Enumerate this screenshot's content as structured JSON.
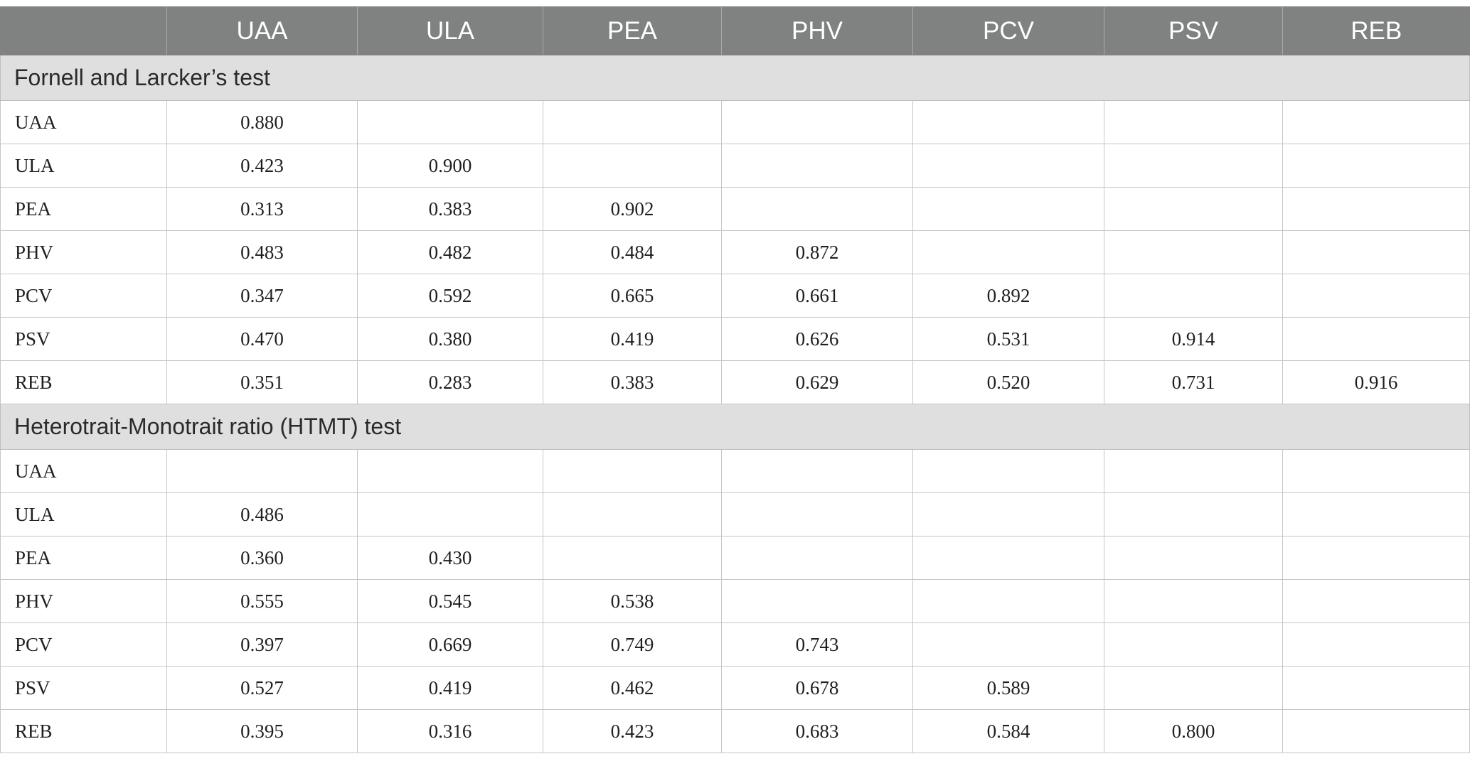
{
  "columns": [
    "UAA",
    "ULA",
    "PEA",
    "PHV",
    "PCV",
    "PSV",
    "REB"
  ],
  "sections": [
    {
      "title": "Fornell and Larcker’s test",
      "rows": [
        {
          "label": "UAA",
          "values": [
            "0.880",
            "",
            "",
            "",
            "",
            "",
            ""
          ]
        },
        {
          "label": "ULA",
          "values": [
            "0.423",
            "0.900",
            "",
            "",
            "",
            "",
            ""
          ]
        },
        {
          "label": "PEA",
          "values": [
            "0.313",
            "0.383",
            "0.902",
            "",
            "",
            "",
            ""
          ]
        },
        {
          "label": "PHV",
          "values": [
            "0.483",
            "0.482",
            "0.484",
            "0.872",
            "",
            "",
            ""
          ]
        },
        {
          "label": "PCV",
          "values": [
            "0.347",
            "0.592",
            "0.665",
            "0.661",
            "0.892",
            "",
            ""
          ]
        },
        {
          "label": "PSV",
          "values": [
            "0.470",
            "0.380",
            "0.419",
            "0.626",
            "0.531",
            "0.914",
            ""
          ]
        },
        {
          "label": "REB",
          "values": [
            "0.351",
            "0.283",
            "0.383",
            "0.629",
            "0.520",
            "0.731",
            "0.916"
          ]
        }
      ]
    },
    {
      "title": "Heterotrait-Monotrait ratio (HTMT) test",
      "rows": [
        {
          "label": "UAA",
          "values": [
            "",
            "",
            "",
            "",
            "",
            "",
            ""
          ]
        },
        {
          "label": "ULA",
          "values": [
            "0.486",
            "",
            "",
            "",
            "",
            "",
            ""
          ]
        },
        {
          "label": "PEA",
          "values": [
            "0.360",
            "0.430",
            "",
            "",
            "",
            "",
            ""
          ]
        },
        {
          "label": "PHV",
          "values": [
            "0.555",
            "0.545",
            "0.538",
            "",
            "",
            "",
            ""
          ]
        },
        {
          "label": "PCV",
          "values": [
            "0.397",
            "0.669",
            "0.749",
            "0.743",
            "",
            "",
            ""
          ]
        },
        {
          "label": "PSV",
          "values": [
            "0.527",
            "0.419",
            "0.462",
            "0.678",
            "0.589",
            "",
            ""
          ]
        },
        {
          "label": "REB",
          "values": [
            "0.395",
            "0.316",
            "0.423",
            "0.683",
            "0.584",
            "0.800",
            ""
          ]
        }
      ]
    }
  ],
  "colors": {
    "header_bg": "#7f8280",
    "header_text": "#ffffff",
    "section_bg": "#e0dfdf",
    "grid_line": "#c6c6c6"
  }
}
